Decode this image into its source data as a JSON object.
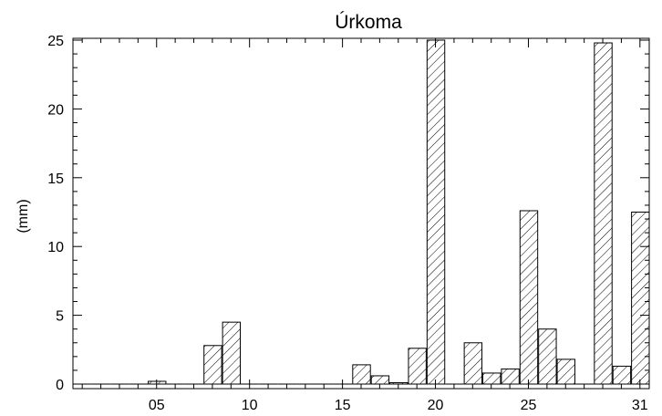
{
  "chart_data": {
    "type": "bar",
    "title": "Úrkoma",
    "xlabel": "",
    "ylabel": "(mm)",
    "ylim": [
      0,
      25
    ],
    "xlim": [
      0,
      31
    ],
    "x_ticks": [
      {
        "value": 5,
        "label": "05"
      },
      {
        "value": 10,
        "label": "10"
      },
      {
        "value": 15,
        "label": "15"
      },
      {
        "value": 20,
        "label": "20"
      },
      {
        "value": 25,
        "label": "25"
      },
      {
        "value": 31,
        "label": "31"
      }
    ],
    "y_ticks": [
      {
        "value": 0,
        "label": "0"
      },
      {
        "value": 5,
        "label": "5"
      },
      {
        "value": 10,
        "label": "10"
      },
      {
        "value": 15,
        "label": "15"
      },
      {
        "value": 20,
        "label": "20"
      },
      {
        "value": 25,
        "label": "25"
      }
    ],
    "days": [
      1,
      2,
      3,
      4,
      5,
      6,
      7,
      8,
      9,
      10,
      11,
      12,
      13,
      14,
      15,
      16,
      17,
      18,
      19,
      20,
      21,
      22,
      23,
      24,
      25,
      26,
      27,
      28,
      29,
      30,
      31
    ],
    "values": [
      0,
      0,
      0,
      0,
      0.2,
      0,
      0,
      2.8,
      4.5,
      0,
      0,
      0,
      0,
      0,
      0,
      1.4,
      0.6,
      0.1,
      2.6,
      25.0,
      0,
      3.0,
      0.8,
      1.1,
      12.6,
      4.0,
      1.8,
      0,
      24.8,
      1.3,
      12.5
    ],
    "grid": false,
    "fill_pattern": "diagonal-hatch"
  }
}
